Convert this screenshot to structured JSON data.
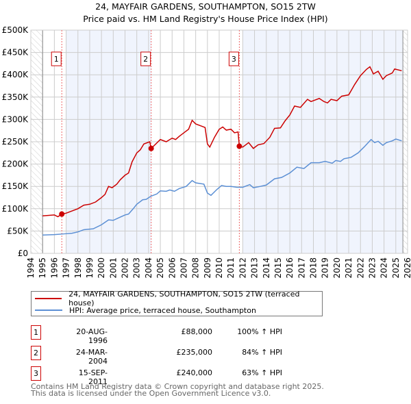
{
  "chart_data": {
    "type": "line",
    "title": "24, MAYFAIR GARDENS, SOUTHAMPTON, SO15 2TW",
    "subtitle": "Price paid vs. HM Land Registry's House Price Index (HPI)",
    "xlim": [
      1994,
      2026
    ],
    "ylim": [
      0,
      500000
    ],
    "x_ticks": [
      "1994",
      "1995",
      "1996",
      "1997",
      "1998",
      "1999",
      "2000",
      "2001",
      "2002",
      "2003",
      "2004",
      "2005",
      "2006",
      "2007",
      "2008",
      "2009",
      "2010",
      "2011",
      "2012",
      "2013",
      "2014",
      "2015",
      "2016",
      "2017",
      "2018",
      "2019",
      "2020",
      "2021",
      "2022",
      "2023",
      "2024",
      "2025",
      "2026"
    ],
    "y_ticks": [
      {
        "v": 0,
        "label": "£0"
      },
      {
        "v": 50000,
        "label": "£50K"
      },
      {
        "v": 100000,
        "label": "£100K"
      },
      {
        "v": 150000,
        "label": "£150K"
      },
      {
        "v": 200000,
        "label": "£200K"
      },
      {
        "v": 250000,
        "label": "£250K"
      },
      {
        "v": 300000,
        "label": "£300K"
      },
      {
        "v": 350000,
        "label": "£350K"
      },
      {
        "v": 400000,
        "label": "£400K"
      },
      {
        "v": 450000,
        "label": "£450K"
      },
      {
        "v": 500000,
        "label": "£500K"
      }
    ],
    "grid": true,
    "series": [
      {
        "name": "24, MAYFAIR GARDENS, SOUTHAMPTON, SO15 2TW (terraced house)",
        "color": "#cc0000",
        "points": [
          [
            1995,
            84000
          ],
          [
            1996,
            86000
          ],
          [
            1996.3,
            82000
          ],
          [
            1996.63,
            88000
          ],
          [
            1997,
            90000
          ],
          [
            1997.5,
            95000
          ],
          [
            1998,
            100000
          ],
          [
            1998.5,
            108000
          ],
          [
            1999,
            110000
          ],
          [
            1999.5,
            115000
          ],
          [
            2000,
            125000
          ],
          [
            2000.3,
            132000
          ],
          [
            2000.6,
            150000
          ],
          [
            2000.9,
            147000
          ],
          [
            2001.3,
            155000
          ],
          [
            2001.6,
            165000
          ],
          [
            2002,
            175000
          ],
          [
            2002.3,
            180000
          ],
          [
            2002.6,
            205000
          ],
          [
            2003,
            225000
          ],
          [
            2003.3,
            232000
          ],
          [
            2003.6,
            245000
          ],
          [
            2004.1,
            250000
          ],
          [
            2004.22,
            235000
          ],
          [
            2004.5,
            242000
          ],
          [
            2005,
            255000
          ],
          [
            2005.5,
            250000
          ],
          [
            2006,
            258000
          ],
          [
            2006.3,
            255000
          ],
          [
            2006.6,
            262000
          ],
          [
            2007,
            270000
          ],
          [
            2007.4,
            278000
          ],
          [
            2007.7,
            298000
          ],
          [
            2008,
            290000
          ],
          [
            2008.4,
            286000
          ],
          [
            2008.8,
            282000
          ],
          [
            2009,
            245000
          ],
          [
            2009.2,
            238000
          ],
          [
            2009.6,
            260000
          ],
          [
            2010,
            278000
          ],
          [
            2010.3,
            283000
          ],
          [
            2010.6,
            276000
          ],
          [
            2011,
            278000
          ],
          [
            2011.3,
            270000
          ],
          [
            2011.6,
            272000
          ],
          [
            2011.71,
            240000
          ],
          [
            2012,
            238000
          ],
          [
            2012.5,
            248000
          ],
          [
            2012.9,
            235000
          ],
          [
            2013.3,
            243000
          ],
          [
            2013.8,
            246000
          ],
          [
            2014.3,
            260000
          ],
          [
            2014.7,
            280000
          ],
          [
            2015.2,
            281000
          ],
          [
            2015.6,
            297000
          ],
          [
            2016,
            310000
          ],
          [
            2016.4,
            330000
          ],
          [
            2016.9,
            327000
          ],
          [
            2017.5,
            345000
          ],
          [
            2017.8,
            340000
          ],
          [
            2018.5,
            347000
          ],
          [
            2018.9,
            340000
          ],
          [
            2019.2,
            337000
          ],
          [
            2019.5,
            345000
          ],
          [
            2020,
            342000
          ],
          [
            2020.4,
            352000
          ],
          [
            2021,
            355000
          ],
          [
            2021.5,
            378000
          ],
          [
            2022,
            398000
          ],
          [
            2022.5,
            412000
          ],
          [
            2022.8,
            418000
          ],
          [
            2023.1,
            402000
          ],
          [
            2023.5,
            408000
          ],
          [
            2023.9,
            390000
          ],
          [
            2024.2,
            398000
          ],
          [
            2024.7,
            404000
          ],
          [
            2024.9,
            413000
          ],
          [
            2025.5,
            409000
          ]
        ]
      },
      {
        "name": "HPI: Average price, terraced house, Southampton",
        "color": "#5b8fd4",
        "points": [
          [
            1995,
            41000
          ],
          [
            1996,
            42000
          ],
          [
            1997,
            44000
          ],
          [
            1997.5,
            45000
          ],
          [
            1998,
            48000
          ],
          [
            1998.5,
            53000
          ],
          [
            1999.3,
            55000
          ],
          [
            2000,
            64000
          ],
          [
            2000.6,
            75000
          ],
          [
            2001,
            74000
          ],
          [
            2001.5,
            80000
          ],
          [
            2002,
            86000
          ],
          [
            2002.3,
            88000
          ],
          [
            2002.7,
            100000
          ],
          [
            2003,
            110000
          ],
          [
            2003.5,
            120000
          ],
          [
            2003.8,
            121000
          ],
          [
            2004.2,
            128000
          ],
          [
            2004.7,
            133000
          ],
          [
            2005,
            140000
          ],
          [
            2005.5,
            139000
          ],
          [
            2005.8,
            142000
          ],
          [
            2006.2,
            139000
          ],
          [
            2006.6,
            145000
          ],
          [
            2007.2,
            150000
          ],
          [
            2007.7,
            163000
          ],
          [
            2008,
            158000
          ],
          [
            2008.7,
            155000
          ],
          [
            2009,
            135000
          ],
          [
            2009.3,
            130000
          ],
          [
            2009.8,
            143000
          ],
          [
            2010.2,
            152000
          ],
          [
            2010.6,
            150000
          ],
          [
            2011,
            150000
          ],
          [
            2011.5,
            148000
          ],
          [
            2012,
            148000
          ],
          [
            2012.6,
            154000
          ],
          [
            2012.9,
            147000
          ],
          [
            2013.5,
            150000
          ],
          [
            2014,
            153000
          ],
          [
            2014.7,
            167000
          ],
          [
            2015.3,
            170000
          ],
          [
            2016,
            180000
          ],
          [
            2016.6,
            193000
          ],
          [
            2017.2,
            190000
          ],
          [
            2017.8,
            203000
          ],
          [
            2018.5,
            203000
          ],
          [
            2019,
            206000
          ],
          [
            2019.6,
            202000
          ],
          [
            2019.9,
            208000
          ],
          [
            2020.3,
            206000
          ],
          [
            2020.6,
            212000
          ],
          [
            2021.2,
            215000
          ],
          [
            2021.8,
            225000
          ],
          [
            2022.3,
            238000
          ],
          [
            2022.9,
            255000
          ],
          [
            2023.2,
            248000
          ],
          [
            2023.5,
            251000
          ],
          [
            2023.9,
            242000
          ],
          [
            2024.2,
            248000
          ],
          [
            2024.7,
            252000
          ],
          [
            2025,
            256000
          ],
          [
            2025.5,
            252000
          ]
        ]
      }
    ],
    "sales": [
      {
        "n": "1",
        "x": 1996.63,
        "price": 88000,
        "date": "20-AUG-1996",
        "price_label": "£88,000",
        "hpi": "100% ↑ HPI"
      },
      {
        "n": "2",
        "x": 2004.22,
        "price": 235000,
        "date": "24-MAR-2004",
        "price_label": "£235,000",
        "hpi": "84% ↑ HPI"
      },
      {
        "n": "3",
        "x": 2011.71,
        "price": 240000,
        "date": "15-SEP-2011",
        "price_label": "£240,000",
        "hpi": "63% ↑ HPI"
      }
    ],
    "shaded_ranges": [
      [
        1997,
        2004.22
      ],
      [
        2012,
        2025.6
      ]
    ],
    "data_range": [
      1995,
      2025.6
    ]
  },
  "footer": [
    "Contains HM Land Registry data © Crown copyright and database right 2025.",
    "This data is licensed under the Open Government Licence v3.0."
  ]
}
